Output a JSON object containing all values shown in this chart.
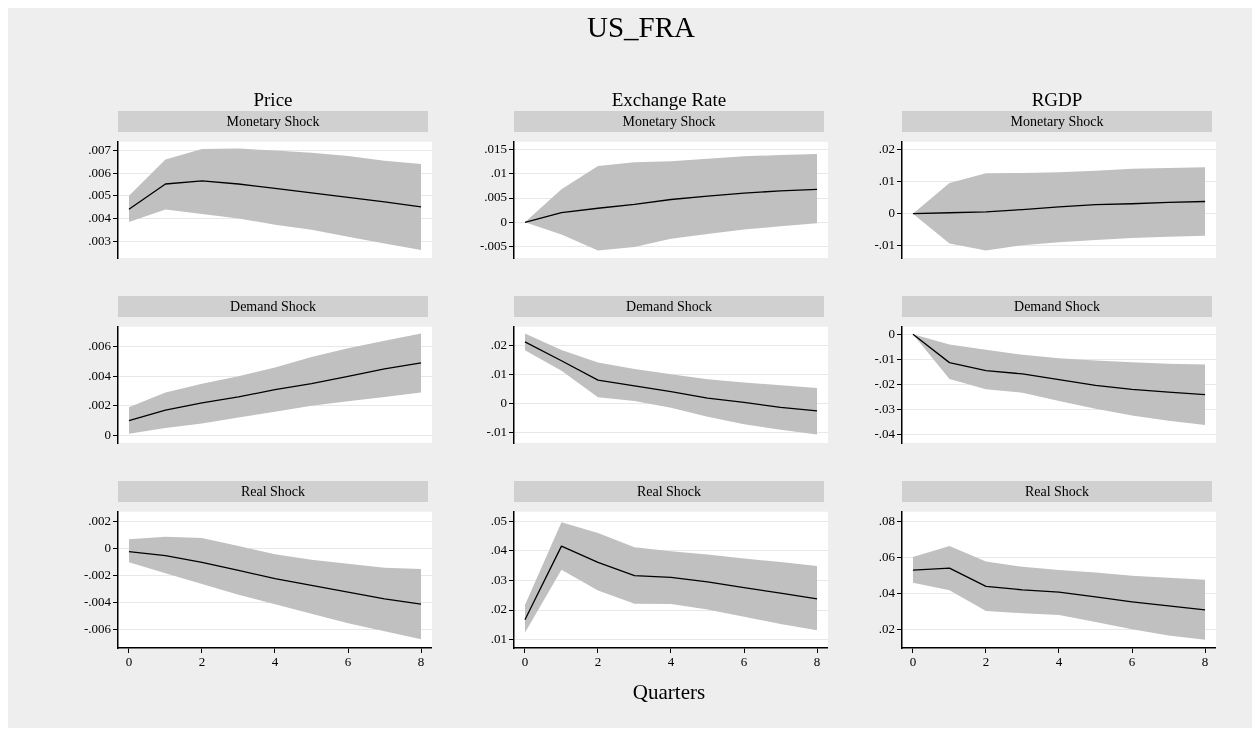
{
  "chart_data": [
    {
      "type": "line",
      "title": "Price",
      "subtitle": "Monetary Shock",
      "xlim": [
        -0.3,
        8.3
      ],
      "ylim": [
        0.00226,
        0.00738
      ],
      "yticks": [
        {
          "value": 0.003,
          "label": ".003"
        },
        {
          "value": 0.004,
          "label": ".004"
        },
        {
          "value": 0.005,
          "label": ".005"
        },
        {
          "value": 0.006,
          "label": ".006"
        },
        {
          "value": 0.007,
          "label": ".007"
        }
      ],
      "grid": "y",
      "tick_labels": "y",
      "x": [
        0,
        1,
        2,
        3,
        4,
        5,
        6,
        7,
        8
      ],
      "series": [
        {
          "color": "#000000",
          "values": [
            0.00441,
            0.00552,
            0.00566,
            0.00552,
            0.00533,
            0.00513,
            0.00493,
            0.00473,
            0.00451
          ],
          "lower": [
            0.00385,
            0.0044,
            0.0042,
            0.004,
            0.00373,
            0.0035,
            0.0032,
            0.0029,
            0.00261
          ],
          "upper": [
            0.005,
            0.0066,
            0.00706,
            0.00708,
            0.007,
            0.0069,
            0.00675,
            0.00655,
            0.0064
          ]
        }
      ]
    },
    {
      "type": "line",
      "title": "Exchange Rate",
      "subtitle": "Monetary Shock",
      "annotations": [
        "US_FRA"
      ],
      "xlim": [
        -0.3,
        8.3
      ],
      "ylim": [
        -0.00736,
        0.0166
      ],
      "yticks": [
        {
          "value": -0.005,
          "label": "-.005"
        },
        {
          "value": 0,
          "label": "0"
        },
        {
          "value": 0.005,
          "label": ".005"
        },
        {
          "value": 0.01,
          "label": ".01"
        },
        {
          "value": 0.015,
          "label": ".015"
        }
      ],
      "grid": "y",
      "tick_labels": "y",
      "x": [
        0,
        1,
        2,
        3,
        4,
        5,
        6,
        7,
        8
      ],
      "series": [
        {
          "color": "#000000",
          "values": [
            0,
            0.002,
            0.0029,
            0.0037,
            0.0047,
            0.0054,
            0.006,
            0.0065,
            0.0068
          ],
          "lower": [
            0,
            -0.0025,
            -0.0058,
            -0.0051,
            -0.0034,
            -0.0024,
            -0.0015,
            -0.0008,
            -0.0002
          ],
          "upper": [
            0,
            0.0068,
            0.0116,
            0.0124,
            0.0126,
            0.0131,
            0.0136,
            0.0139,
            0.0141
          ]
        }
      ]
    },
    {
      "type": "line",
      "title": "RGDP",
      "subtitle": "Monetary Shock",
      "xlim": [
        -0.3,
        8.3
      ],
      "ylim": [
        -0.0138,
        0.0224
      ],
      "yticks": [
        {
          "value": -0.01,
          "label": "-.01"
        },
        {
          "value": 0,
          "label": "0"
        },
        {
          "value": 0.01,
          "label": ".01"
        },
        {
          "value": 0.02,
          "label": ".02"
        }
      ],
      "grid": "y",
      "tick_labels": "y",
      "x": [
        0,
        1,
        2,
        3,
        4,
        5,
        6,
        7,
        8
      ],
      "series": [
        {
          "color": "#000000",
          "values": [
            0,
            0.0003,
            0.0006,
            0.0013,
            0.0021,
            0.0028,
            0.0031,
            0.0035,
            0.0038
          ],
          "lower": [
            0,
            -0.0093,
            -0.0115,
            -0.0098,
            -0.0089,
            -0.0082,
            -0.0076,
            -0.0072,
            -0.0069
          ],
          "upper": [
            0,
            0.0096,
            0.0126,
            0.0127,
            0.0129,
            0.0134,
            0.014,
            0.0142,
            0.0145
          ]
        }
      ]
    },
    {
      "type": "line",
      "subtitle": "Demand Shock",
      "xlim": [
        -0.3,
        8.3
      ],
      "ylim": [
        -0.00052,
        0.00735
      ],
      "yticks": [
        {
          "value": 0,
          "label": "0"
        },
        {
          "value": 0.002,
          "label": ".002"
        },
        {
          "value": 0.004,
          "label": ".004"
        },
        {
          "value": 0.006,
          "label": ".006"
        }
      ],
      "grid": "y",
      "tick_labels": "y",
      "x": [
        0,
        1,
        2,
        3,
        4,
        5,
        6,
        7,
        8
      ],
      "series": [
        {
          "color": "#000000",
          "values": [
            0.00099,
            0.0017,
            0.0022,
            0.0026,
            0.0031,
            0.0035,
            0.004,
            0.0045,
            0.0049
          ],
          "lower": [
            0.0001,
            0.0005,
            0.0008,
            0.0012,
            0.0016,
            0.002,
            0.0023,
            0.0026,
            0.0029
          ],
          "upper": [
            0.0019,
            0.0029,
            0.0035,
            0.004,
            0.0046,
            0.0053,
            0.0059,
            0.0064,
            0.0069
          ]
        }
      ]
    },
    {
      "type": "line",
      "subtitle": "Demand Shock",
      "xlim": [
        -0.3,
        8.3
      ],
      "ylim": [
        -0.0136,
        0.0265
      ],
      "yticks": [
        {
          "value": -0.01,
          "label": "-.01"
        },
        {
          "value": 0,
          "label": "0"
        },
        {
          "value": 0.01,
          "label": ".01"
        },
        {
          "value": 0.02,
          "label": ".02"
        }
      ],
      "grid": "y",
      "tick_labels": "y",
      "x": [
        0,
        1,
        2,
        3,
        4,
        5,
        6,
        7,
        8
      ],
      "series": [
        {
          "color": "#000000",
          "values": [
            0.0213,
            0.0148,
            0.0081,
            0.0061,
            0.0041,
            0.0019,
            0.0004,
            -0.0013,
            -0.0025
          ],
          "lower": [
            0.0184,
            0.0113,
            0.0022,
            0.0009,
            -0.0014,
            -0.0045,
            -0.0071,
            -0.009,
            -0.0107
          ],
          "upper": [
            0.0242,
            0.0185,
            0.0142,
            0.0119,
            0.0101,
            0.0084,
            0.0073,
            0.0063,
            0.0054
          ]
        }
      ]
    },
    {
      "type": "line",
      "subtitle": "Demand Shock",
      "xlim": [
        -0.3,
        8.3
      ],
      "ylim": [
        -0.0434,
        0.003
      ],
      "yticks": [
        {
          "value": -0.04,
          "label": "-.04"
        },
        {
          "value": -0.03,
          "label": "-.03"
        },
        {
          "value": -0.02,
          "label": "-.02"
        },
        {
          "value": -0.01,
          "label": "-.01"
        },
        {
          "value": 0,
          "label": "0"
        }
      ],
      "grid": "y",
      "tick_labels": "y",
      "x": [
        0,
        1,
        2,
        3,
        4,
        5,
        6,
        7,
        8
      ],
      "series": [
        {
          "color": "#000000",
          "values": [
            0,
            -0.0113,
            -0.0145,
            -0.0158,
            -0.0181,
            -0.0204,
            -0.022,
            -0.0231,
            -0.0241
          ],
          "lower": [
            0,
            -0.0178,
            -0.0219,
            -0.0233,
            -0.0266,
            -0.0297,
            -0.0324,
            -0.0345,
            -0.0362
          ],
          "upper": [
            0,
            -0.0041,
            -0.0062,
            -0.0082,
            -0.0096,
            -0.0105,
            -0.0112,
            -0.0118,
            -0.0121
          ]
        }
      ]
    },
    {
      "type": "line",
      "subtitle": "Real Shock",
      "xlim": [
        -0.3,
        8.3
      ],
      "ylim": [
        -0.00734,
        0.00274
      ],
      "xticks": [
        0,
        2,
        4,
        6,
        8
      ],
      "yticks": [
        {
          "value": -0.006,
          "label": "-.006"
        },
        {
          "value": -0.004,
          "label": "-.004"
        },
        {
          "value": -0.002,
          "label": "-.002"
        },
        {
          "value": 0,
          "label": "0"
        },
        {
          "value": 0.002,
          "label": ".002"
        }
      ],
      "grid": "y",
      "x": [
        0,
        1,
        2,
        3,
        4,
        5,
        6,
        7,
        8
      ],
      "series": [
        {
          "color": "#000000",
          "values": [
            -0.0002,
            -0.0005,
            -0.001,
            -0.0016,
            -0.0022,
            -0.0027,
            -0.0032,
            -0.0037,
            -0.0041
          ],
          "lower": [
            -0.001,
            -0.0018,
            -0.0026,
            -0.0034,
            -0.0041,
            -0.0048,
            -0.0055,
            -0.0061,
            -0.0067
          ],
          "upper": [
            0.0007,
            0.0009,
            0.0008,
            0.0002,
            -0.0004,
            -0.0008,
            -0.0011,
            -0.0014,
            -0.0015
          ]
        }
      ]
    },
    {
      "type": "line",
      "subtitle": "Real Shock",
      "xlabel": "Quarters",
      "xlim": [
        -0.3,
        8.3
      ],
      "ylim": [
        0.00716,
        0.0532
      ],
      "xticks": [
        0,
        2,
        4,
        6,
        8
      ],
      "yticks": [
        {
          "value": 0.01,
          "label": ".01"
        },
        {
          "value": 0.02,
          "label": ".02"
        },
        {
          "value": 0.03,
          "label": ".03"
        },
        {
          "value": 0.04,
          "label": ".04"
        },
        {
          "value": 0.05,
          "label": ".05"
        }
      ],
      "grid": "y",
      "x": [
        0,
        1,
        2,
        3,
        4,
        5,
        6,
        7,
        8
      ],
      "series": [
        {
          "color": "#000000",
          "values": [
            0.0167,
            0.0416,
            0.0361,
            0.0316,
            0.031,
            0.0295,
            0.0276,
            0.0257,
            0.0238
          ],
          "lower": [
            0.0123,
            0.0336,
            0.0266,
            0.0221,
            0.022,
            0.0202,
            0.0177,
            0.0153,
            0.0132
          ],
          "upper": [
            0.0217,
            0.0497,
            0.046,
            0.0412,
            0.0399,
            0.0388,
            0.0374,
            0.0362,
            0.0349
          ]
        }
      ]
    },
    {
      "type": "line",
      "subtitle": "Real Shock",
      "xlim": [
        -0.3,
        8.3
      ],
      "ylim": [
        0.01,
        0.0855
      ],
      "xticks": [
        0,
        2,
        4,
        6,
        8
      ],
      "yticks": [
        {
          "value": 0.02,
          "label": ".02"
        },
        {
          "value": 0.04,
          "label": ".04"
        },
        {
          "value": 0.06,
          "label": ".06"
        },
        {
          "value": 0.08,
          "label": ".08"
        }
      ],
      "grid": "y",
      "x": [
        0,
        1,
        2,
        3,
        4,
        5,
        6,
        7,
        8
      ],
      "series": [
        {
          "color": "#000000",
          "values": [
            0.0532,
            0.0543,
            0.0442,
            0.0422,
            0.041,
            0.0383,
            0.0356,
            0.0333,
            0.0311
          ],
          "lower": [
            0.0462,
            0.042,
            0.0305,
            0.0293,
            0.0283,
            0.0244,
            0.0204,
            0.0169,
            0.0146
          ],
          "upper": [
            0.0604,
            0.0665,
            0.0579,
            0.055,
            0.0532,
            0.0519,
            0.0501,
            0.049,
            0.0478
          ]
        }
      ]
    }
  ]
}
